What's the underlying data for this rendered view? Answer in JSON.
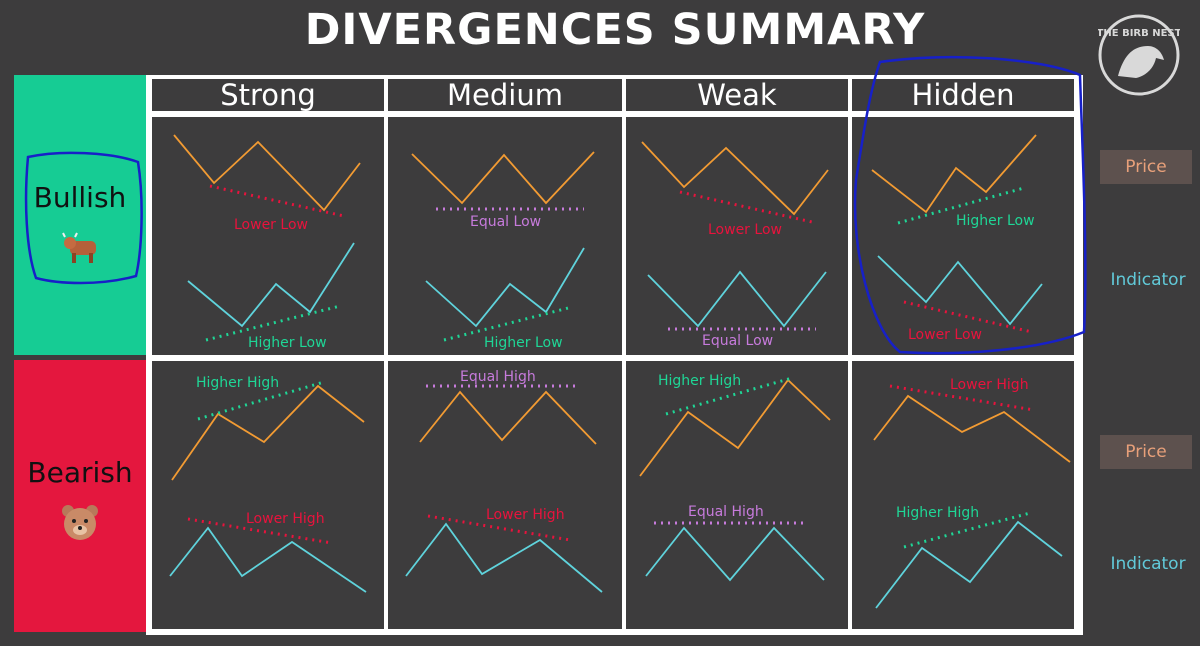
{
  "title": "DIVERGENCES SUMMARY",
  "logo_text": "THE BIRB NEST",
  "columns": [
    "Strong",
    "Medium",
    "Weak",
    "Hidden"
  ],
  "rows": {
    "bullish": {
      "label": "Bullish",
      "icon": "bull-icon"
    },
    "bearish": {
      "label": "Bearish",
      "icon": "bear-icon"
    }
  },
  "side_labels": {
    "price": "Price",
    "indicator": "Indicator"
  },
  "cells": {
    "bull_strong": {
      "price": "Lower Low",
      "indicator": "Higher Low"
    },
    "bull_medium": {
      "price": "Equal Low",
      "indicator": "Higher Low"
    },
    "bull_weak": {
      "price": "Lower Low",
      "indicator": "Equal Low"
    },
    "bull_hidden": {
      "price": "Higher Low",
      "indicator": "Lower Low"
    },
    "bear_strong": {
      "price": "Higher High",
      "indicator": "Lower High"
    },
    "bear_medium": {
      "price": "Equal High",
      "indicator": "Lower High"
    },
    "bear_weak": {
      "price": "Higher High",
      "indicator": "Equal High"
    },
    "bear_hidden": {
      "price": "Lower High",
      "indicator": "Higher High"
    }
  },
  "colors": {
    "price_line": "#f29b33",
    "indicator_line": "#5fd3dc",
    "lower": "#e8133d",
    "higher": "#1fd696",
    "equal": "#c77bdc",
    "annotation": "#1720c8"
  }
}
